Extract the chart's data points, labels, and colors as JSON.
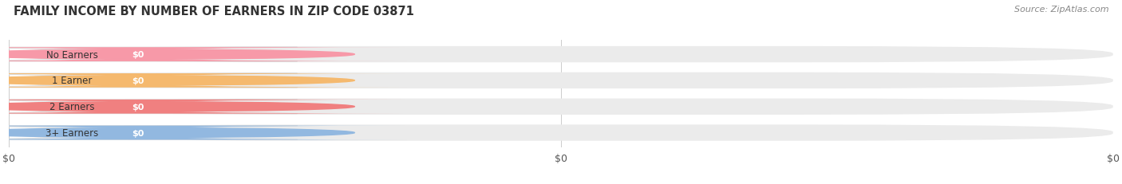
{
  "title": "FAMILY INCOME BY NUMBER OF EARNERS IN ZIP CODE 03871",
  "source": "Source: ZipAtlas.com",
  "categories": [
    "No Earners",
    "1 Earner",
    "2 Earners",
    "3+ Earners"
  ],
  "values": [
    0,
    0,
    0,
    0
  ],
  "bar_colors": [
    "#f799a8",
    "#f5b96e",
    "#f08080",
    "#92b8e0"
  ],
  "background_color": "#ffffff",
  "bar_bg_color": "#ebebeb",
  "tick_labels": [
    "$0",
    "$0",
    "$0"
  ]
}
